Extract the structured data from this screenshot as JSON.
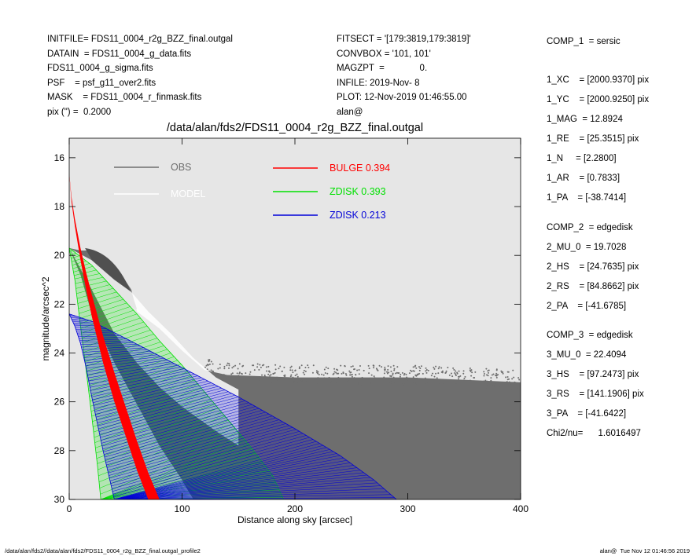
{
  "header_left": [
    "INITFILE= FDS11_0004_r2g_BZZ_final.outgal",
    "DATAIN  = FDS11_0004_g_data.fits",
    "FDS11_0004_g_sigma.fits",
    "PSF    = psf_g11_over2.fits",
    "MASK    = FDS11_0004_r_finmask.fits",
    "pix (\") =  0.2000"
  ],
  "header_mid": [
    "FITSECT = '[179:3819,179:3819]'",
    "CONVBOX = '101, 101'",
    "MAGZPT  =              0.",
    "INFILE: 2019-Nov- 8",
    "PLOT: 12-Nov-2019 01:46:55.00",
    "alan@"
  ],
  "components": [
    {
      "label": "COMP_1  = sersic",
      "gap": true
    },
    {
      "label": "1_XC    = [2000.9370] pix"
    },
    {
      "label": "1_YC    = [2000.9250] pix"
    },
    {
      "label": "1_MAG  = 12.8924"
    },
    {
      "label": "1_RE    = [25.3515] pix"
    },
    {
      "label": "1_N     = [2.2800]"
    },
    {
      "label": "1_AR    = [0.7833]"
    },
    {
      "label": "1_PA    = [-38.7414]"
    },
    {
      "label": "COMP_2  = edgedisk"
    },
    {
      "label": "2_MU_0  = 19.7028"
    },
    {
      "label": "2_HS    = [24.7635] pix"
    },
    {
      "label": "2_RS    = [84.8662] pix"
    },
    {
      "label": "2_PA    = [-41.6785]"
    },
    {
      "label": "COMP_3  = edgedisk"
    },
    {
      "label": "3_MU_0  = 22.4094"
    },
    {
      "label": "3_HS    = [97.2473] pix"
    },
    {
      "label": "3_RS    = [141.1906] pix"
    },
    {
      "label": "3_PA    = [-41.6422]"
    }
  ],
  "chi2": "Chi2/nu=      1.6016497",
  "footer_left": "/data/alan/fds2//data/alan/fds2/FDS11_0004_r2g_BZZ_final.outgal_profile2",
  "footer_right": "alan@  Tue Nov 12 01:46:56 2019",
  "colors": {
    "plot_bg": "#e6e6e6",
    "obs": "#6e6e6e",
    "model": "#ffffff",
    "bulge": "#ff0000",
    "zdisk1": "#00e000",
    "zdisk2": "#0000d8"
  },
  "chart_data": {
    "type": "scatter",
    "title": "/data/alan/fds2/FDS11_0004_r2g_BZZ_final.outgal",
    "xlabel": "Distance along sky [arcsec]",
    "ylabel": "magnitude/arcsec^2",
    "xlim": [
      0,
      400
    ],
    "ylim": [
      30,
      15.2
    ],
    "y_inverted": true,
    "x_ticks": [
      0,
      100,
      200,
      300,
      400
    ],
    "y_ticks": [
      16,
      18,
      20,
      22,
      24,
      26,
      28,
      30
    ],
    "legend": [
      {
        "name": "OBS",
        "color": "#6e6e6e"
      },
      {
        "name": "MODEL",
        "color": "#ffffff"
      },
      {
        "name": "BULGE  0.394",
        "color": "#ff0000"
      },
      {
        "name": "ZDISK  0.393",
        "color": "#00e000"
      },
      {
        "name": "ZDISK  0.213",
        "color": "#0000d8"
      }
    ],
    "series": [
      {
        "name": "BULGE",
        "inner_edge": [
          [
            0,
            16.6
          ],
          [
            2,
            17.8
          ],
          [
            5,
            18.8
          ],
          [
            10,
            20.2
          ],
          [
            15,
            21.4
          ],
          [
            20,
            22.5
          ],
          [
            30,
            24.4
          ],
          [
            40,
            26.0
          ],
          [
            50,
            27.4
          ],
          [
            60,
            28.8
          ],
          [
            70,
            30.0
          ]
        ],
        "outer_edge": [
          [
            0,
            16.6
          ],
          [
            2,
            17.6
          ],
          [
            5,
            18.5
          ],
          [
            10,
            19.7
          ],
          [
            15,
            20.7
          ],
          [
            20,
            21.6
          ],
          [
            30,
            23.3
          ],
          [
            40,
            24.8
          ],
          [
            50,
            26.2
          ],
          [
            60,
            27.6
          ],
          [
            70,
            28.9
          ],
          [
            80,
            30.0
          ]
        ]
      },
      {
        "name": "ZDISK 0.393",
        "upper_edge": [
          [
            0,
            19.7
          ],
          [
            20,
            20.4
          ],
          [
            40,
            21.4
          ],
          [
            60,
            22.4
          ],
          [
            80,
            23.5
          ],
          [
            100,
            24.5
          ],
          [
            120,
            25.6
          ],
          [
            140,
            26.7
          ],
          [
            160,
            27.8
          ],
          [
            180,
            29.0
          ],
          [
            190,
            30.0
          ]
        ],
        "lower_edge": [
          [
            0,
            19.7
          ],
          [
            5,
            21.0
          ],
          [
            10,
            22.9
          ],
          [
            15,
            24.7
          ],
          [
            20,
            26.6
          ],
          [
            25,
            28.6
          ],
          [
            28,
            30.0
          ]
        ]
      },
      {
        "name": "ZDISK 0.213",
        "upper_edge": [
          [
            0,
            22.4
          ],
          [
            20,
            22.7
          ],
          [
            50,
            23.4
          ],
          [
            100,
            24.6
          ],
          [
            150,
            25.8
          ],
          [
            200,
            27.1
          ],
          [
            240,
            28.2
          ],
          [
            270,
            29.2
          ],
          [
            290,
            30.0
          ]
        ],
        "lower_edge": [
          [
            0,
            22.4
          ],
          [
            5,
            22.9
          ],
          [
            10,
            23.6
          ],
          [
            15,
            24.6
          ],
          [
            20,
            25.8
          ],
          [
            30,
            28.0
          ],
          [
            40,
            30.0
          ]
        ]
      },
      {
        "name": "OBS",
        "upper_edge": [
          [
            0,
            19.7
          ],
          [
            10,
            19.8
          ],
          [
            20,
            19.8
          ],
          [
            30,
            20.2
          ],
          [
            45,
            20.7
          ],
          [
            55,
            21.4
          ],
          [
            60,
            22.3
          ],
          [
            80,
            23.0
          ],
          [
            100,
            23.9
          ],
          [
            120,
            24.7
          ],
          [
            140,
            24.9
          ],
          [
            200,
            25.0
          ],
          [
            300,
            25.0
          ],
          [
            400,
            25.2
          ]
        ],
        "lower_edge": [
          [
            0,
            19.7
          ],
          [
            10,
            20.8
          ],
          [
            20,
            22.4
          ],
          [
            40,
            24.4
          ],
          [
            60,
            26.1
          ],
          [
            80,
            27.8
          ],
          [
            100,
            29.2
          ],
          [
            110,
            30.0
          ]
        ]
      },
      {
        "name": "MODEL",
        "upper_edge": [
          [
            0,
            19.7
          ],
          [
            20,
            20.2
          ],
          [
            40,
            21.0
          ],
          [
            55,
            21.5
          ],
          [
            70,
            22.3
          ],
          [
            90,
            23.2
          ],
          [
            110,
            24.2
          ],
          [
            130,
            25.0
          ],
          [
            150,
            25.5
          ]
        ],
        "lower_edge": [
          [
            0,
            19.7
          ],
          [
            20,
            21.4
          ],
          [
            40,
            23.2
          ],
          [
            60,
            24.4
          ],
          [
            80,
            25.4
          ],
          [
            100,
            26.2
          ],
          [
            130,
            27.2
          ],
          [
            150,
            27.8
          ]
        ]
      }
    ]
  }
}
